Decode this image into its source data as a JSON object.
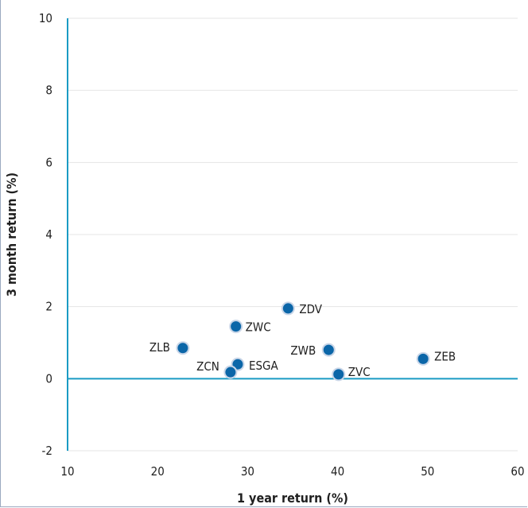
{
  "chart_data": {
    "type": "scatter",
    "xlabel": "1 year return (%)",
    "ylabel": "3 month return (%)",
    "xlim": [
      10,
      60
    ],
    "ylim": [
      -2,
      10
    ],
    "xticks": [
      "10",
      "20",
      "30",
      "40",
      "50",
      "60"
    ],
    "yticks": [
      "10",
      "8",
      "6",
      "4",
      "2",
      "0",
      "-2"
    ],
    "grid": "horizontal",
    "colors": {
      "point": "#0b66a8",
      "point_halo": "#c9d6e8",
      "axis": "#1a9bc4",
      "grid": "#e4e4e4"
    },
    "points": [
      {
        "label": "ZDV",
        "x": 34.5,
        "y": 1.95
      },
      {
        "label": "ZWC",
        "x": 28.7,
        "y": 1.45
      },
      {
        "label": "ZLB",
        "x": 22.8,
        "y": 0.85
      },
      {
        "label": "ZWB",
        "x": 39.0,
        "y": 0.8
      },
      {
        "label": "ZEB",
        "x": 49.5,
        "y": 0.55
      },
      {
        "label": "ESGA",
        "x": 28.9,
        "y": 0.4
      },
      {
        "label": "ZCN",
        "x": 28.1,
        "y": 0.18
      },
      {
        "label": "ZVC",
        "x": 40.1,
        "y": 0.12
      }
    ]
  }
}
